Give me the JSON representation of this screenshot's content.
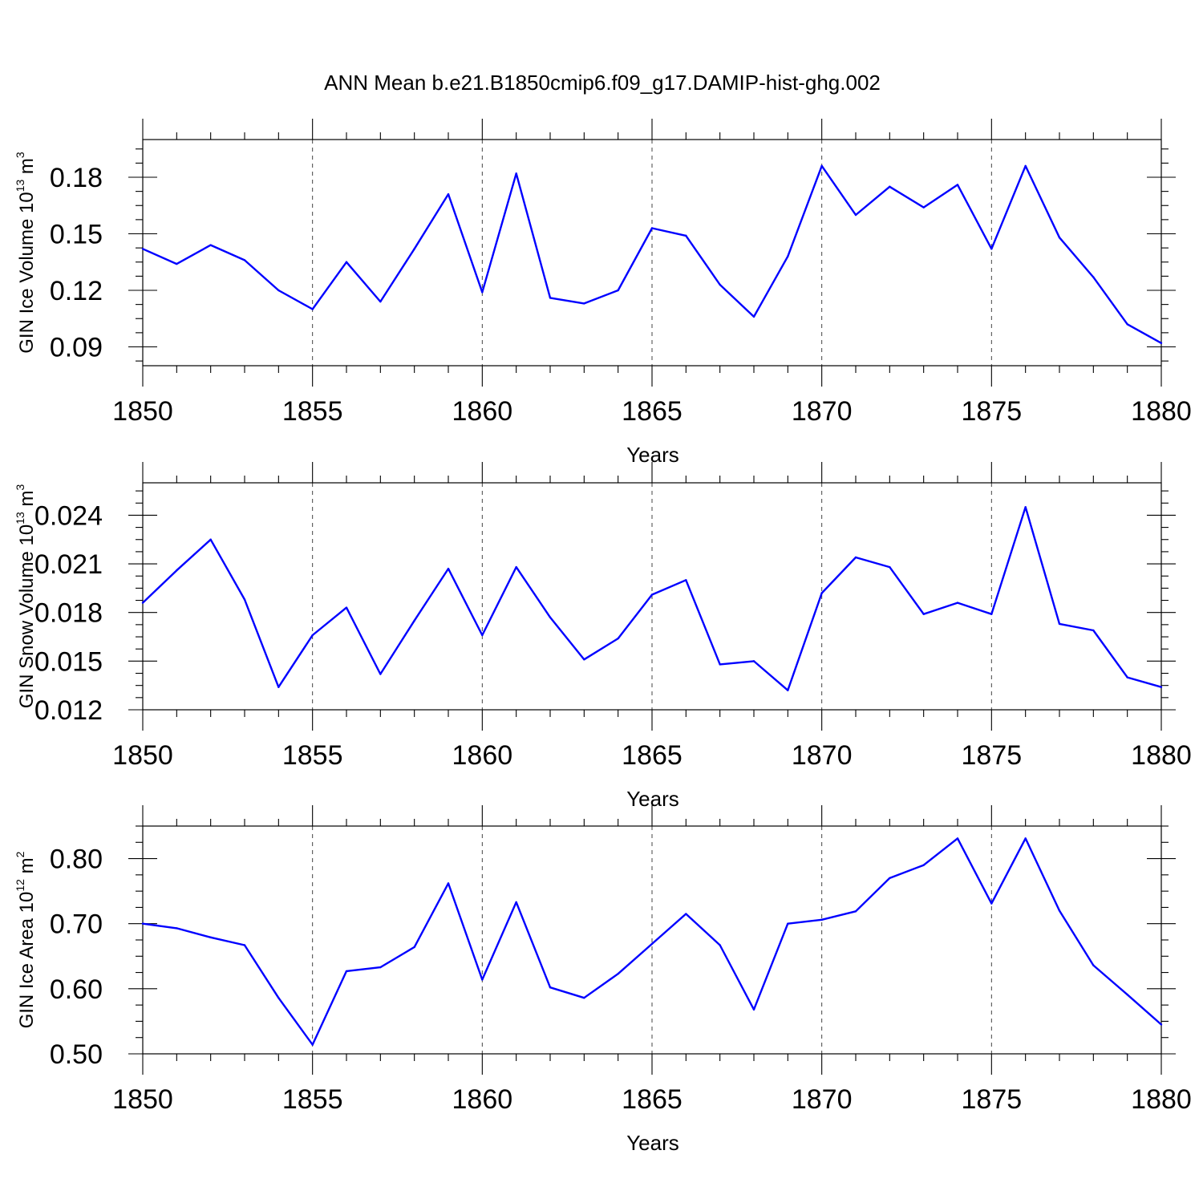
{
  "title": "ANN Mean b.e21.B1850cmip6.f09_g17.DAMIP-hist-ghg.002",
  "colors": {
    "series": "#0000ff",
    "grid": "#444444",
    "axis": "#000000"
  },
  "chart_data": [
    {
      "type": "line",
      "xlabel": "Years",
      "ylabel": {
        "text": "GIN Ice Volume 10",
        "exponent": "13",
        "unit": " m",
        "unit_exponent": "3"
      },
      "xlim": [
        1850,
        1880
      ],
      "ylim": [
        0.08,
        0.2
      ],
      "xticks": [
        1850,
        1855,
        1860,
        1865,
        1870,
        1875,
        1880
      ],
      "yticks": [
        0.09,
        0.12,
        0.15,
        0.18
      ],
      "ytick_labels": [
        "0.09",
        "0.12",
        "0.15",
        "0.18"
      ],
      "grid": "vertical dashed at major x ticks",
      "x": [
        1850,
        1851,
        1852,
        1853,
        1854,
        1855,
        1856,
        1857,
        1858,
        1859,
        1860,
        1861,
        1862,
        1863,
        1864,
        1865,
        1866,
        1867,
        1868,
        1869,
        1870,
        1871,
        1872,
        1873,
        1874,
        1875,
        1876,
        1877,
        1878,
        1879,
        1880
      ],
      "values": [
        0.142,
        0.134,
        0.144,
        0.136,
        0.12,
        0.11,
        0.135,
        0.114,
        0.142,
        0.171,
        0.119,
        0.182,
        0.116,
        0.113,
        0.12,
        0.153,
        0.149,
        0.123,
        0.106,
        0.138,
        0.186,
        0.16,
        0.175,
        0.164,
        0.176,
        0.142,
        0.186,
        0.148,
        0.127,
        0.102,
        0.092
      ]
    },
    {
      "type": "line",
      "xlabel": "Years",
      "ylabel": {
        "text": "GIN Snow Volume 10",
        "exponent": "13",
        "unit": " m",
        "unit_exponent": "3"
      },
      "xlim": [
        1850,
        1880
      ],
      "ylim": [
        0.012,
        0.026
      ],
      "xticks": [
        1850,
        1855,
        1860,
        1865,
        1870,
        1875,
        1880
      ],
      "yticks": [
        0.012,
        0.015,
        0.018,
        0.021,
        0.024
      ],
      "ytick_labels": [
        "0.012",
        "0.015",
        "0.018",
        "0.021",
        "0.024"
      ],
      "grid": "vertical dashed at major x ticks",
      "x": [
        1850,
        1851,
        1852,
        1853,
        1854,
        1855,
        1856,
        1857,
        1858,
        1859,
        1860,
        1861,
        1862,
        1863,
        1864,
        1865,
        1866,
        1867,
        1868,
        1869,
        1870,
        1871,
        1872,
        1873,
        1874,
        1875,
        1876,
        1877,
        1878,
        1879,
        1880
      ],
      "values": [
        0.0186,
        0.0206,
        0.0225,
        0.0188,
        0.0134,
        0.0166,
        0.0183,
        0.0142,
        0.0175,
        0.0207,
        0.0166,
        0.0208,
        0.0177,
        0.0151,
        0.0164,
        0.0191,
        0.02,
        0.0148,
        0.015,
        0.0132,
        0.0192,
        0.0214,
        0.0208,
        0.0179,
        0.0186,
        0.0179,
        0.0245,
        0.0173,
        0.0169,
        0.014,
        0.0134
      ]
    },
    {
      "type": "line",
      "xlabel": "Years",
      "ylabel": {
        "text": "GIN Ice Area 10",
        "exponent": "12",
        "unit": " m",
        "unit_exponent": "2"
      },
      "xlim": [
        1850,
        1880
      ],
      "ylim": [
        0.5,
        0.85
      ],
      "xticks": [
        1850,
        1855,
        1860,
        1865,
        1870,
        1875,
        1880
      ],
      "yticks": [
        0.5,
        0.6,
        0.7,
        0.8
      ],
      "ytick_labels": [
        "0.50",
        "0.60",
        "0.70",
        "0.80"
      ],
      "grid": "vertical dashed at major x ticks",
      "x": [
        1850,
        1851,
        1852,
        1853,
        1854,
        1855,
        1856,
        1857,
        1858,
        1859,
        1860,
        1861,
        1862,
        1863,
        1864,
        1865,
        1866,
        1867,
        1868,
        1869,
        1870,
        1871,
        1872,
        1873,
        1874,
        1875,
        1876,
        1877,
        1878,
        1879,
        1880
      ],
      "values": [
        0.7,
        0.693,
        0.679,
        0.667,
        0.586,
        0.514,
        0.627,
        0.633,
        0.664,
        0.762,
        0.614,
        0.733,
        0.602,
        0.586,
        0.623,
        0.669,
        0.715,
        0.667,
        0.568,
        0.7,
        0.706,
        0.719,
        0.77,
        0.79,
        0.831,
        0.731,
        0.831,
        0.72,
        0.636,
        0.591,
        0.545
      ]
    }
  ]
}
